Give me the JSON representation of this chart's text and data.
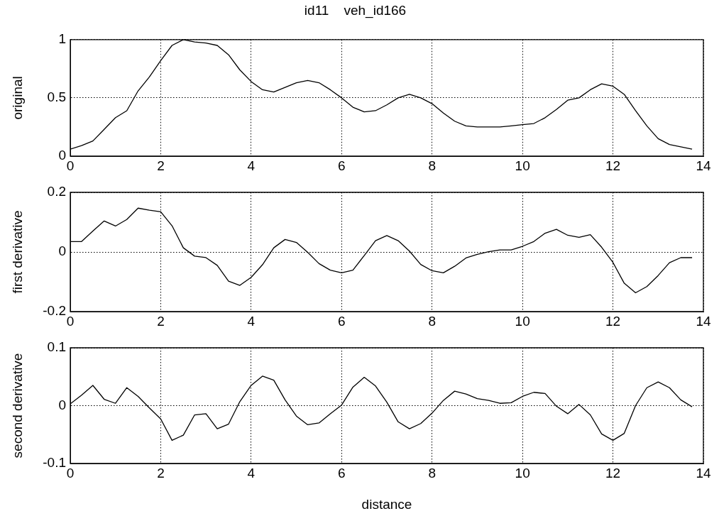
{
  "chart_data": [
    {
      "type": "line",
      "title": "id11    veh_id166",
      "ylabel": "original",
      "x": [
        0,
        0.25,
        0.5,
        0.75,
        1,
        1.25,
        1.5,
        1.75,
        2,
        2.25,
        2.5,
        2.75,
        3,
        3.25,
        3.5,
        3.75,
        4,
        4.25,
        4.5,
        4.75,
        5,
        5.25,
        5.5,
        5.75,
        6,
        6.25,
        6.5,
        6.75,
        7,
        7.25,
        7.5,
        7.75,
        8,
        8.25,
        8.5,
        8.75,
        9,
        9.25,
        9.5,
        9.75,
        10,
        10.25,
        10.5,
        10.75,
        11,
        11.25,
        11.5,
        11.75,
        12,
        12.25,
        12.5,
        12.75,
        13,
        13.25,
        13.5,
        13.75
      ],
      "series": [
        {
          "color": "#000000",
          "values": [
            0.06,
            0.09,
            0.13,
            0.23,
            0.33,
            0.39,
            0.56,
            0.68,
            0.82,
            0.95,
            1.0,
            0.98,
            0.97,
            0.95,
            0.87,
            0.74,
            0.64,
            0.57,
            0.55,
            0.59,
            0.63,
            0.65,
            0.63,
            0.57,
            0.5,
            0.42,
            0.38,
            0.39,
            0.44,
            0.5,
            0.53,
            0.5,
            0.45,
            0.37,
            0.3,
            0.26,
            0.25,
            0.25,
            0.25,
            0.26,
            0.27,
            0.28,
            0.33,
            0.4,
            0.48,
            0.5,
            0.57,
            0.62,
            0.6,
            0.53,
            0.39,
            0.26,
            0.15,
            0.1,
            0.08,
            0.06
          ]
        }
      ],
      "xlim": [
        0,
        14
      ],
      "xticks": [
        0,
        2,
        4,
        6,
        8,
        10,
        12,
        14
      ],
      "ylim": [
        0,
        1
      ],
      "yticks": [
        0,
        0.5,
        1
      ],
      "grid": true,
      "marker": "none"
    },
    {
      "type": "line",
      "ylabel": "first derivative",
      "x": [
        0,
        0.25,
        0.5,
        0.75,
        1,
        1.25,
        1.5,
        1.75,
        2,
        2.25,
        2.5,
        2.75,
        3,
        3.25,
        3.5,
        3.75,
        4,
        4.25,
        4.5,
        4.75,
        5,
        5.25,
        5.5,
        5.75,
        6,
        6.25,
        6.5,
        6.75,
        7,
        7.25,
        7.5,
        7.75,
        8,
        8.25,
        8.5,
        8.75,
        9,
        9.25,
        9.5,
        9.75,
        10,
        10.25,
        10.5,
        10.75,
        11,
        11.25,
        11.5,
        11.75,
        12,
        12.25,
        12.5,
        12.75,
        13,
        13.25,
        13.5,
        13.75
      ],
      "series": [
        {
          "color": "#000000",
          "values": [
            0.035,
            0.035,
            0.07,
            0.104,
            0.087,
            0.109,
            0.147,
            0.14,
            0.135,
            0.088,
            0.014,
            -0.014,
            -0.019,
            -0.045,
            -0.098,
            -0.112,
            -0.085,
            -0.043,
            0.014,
            0.042,
            0.032,
            -0.001,
            -0.039,
            -0.061,
            -0.07,
            -0.061,
            -0.012,
            0.038,
            0.055,
            0.038,
            0.003,
            -0.042,
            -0.063,
            -0.07,
            -0.048,
            -0.02,
            -0.008,
            0.001,
            0.007,
            0.007,
            0.019,
            0.035,
            0.063,
            0.076,
            0.056,
            0.049,
            0.058,
            0.016,
            -0.035,
            -0.105,
            -0.137,
            -0.116,
            -0.079,
            -0.036,
            -0.019,
            -0.019
          ]
        }
      ],
      "xlim": [
        0,
        14
      ],
      "xticks": [
        0,
        2,
        4,
        6,
        8,
        10,
        12,
        14
      ],
      "ylim": [
        -0.2,
        0.2
      ],
      "yticks": [
        -0.2,
        0,
        0.2
      ],
      "grid": true,
      "marker": "none"
    },
    {
      "type": "line",
      "ylabel": "second derivative",
      "xlabel": "distance",
      "x": [
        0,
        0.25,
        0.5,
        0.75,
        1,
        1.25,
        1.5,
        1.75,
        2,
        2.25,
        2.5,
        2.75,
        3,
        3.25,
        3.5,
        3.75,
        4,
        4.25,
        4.5,
        4.75,
        5,
        5.25,
        5.5,
        5.75,
        6,
        6.25,
        6.5,
        6.75,
        7,
        7.25,
        7.5,
        7.75,
        8,
        8.25,
        8.5,
        8.75,
        9,
        9.25,
        9.5,
        9.75,
        10,
        10.25,
        10.5,
        10.75,
        11,
        11.25,
        11.5,
        11.75,
        12,
        12.25,
        12.5,
        12.75,
        13,
        13.25,
        13.5,
        13.75
      ],
      "series": [
        {
          "color": "#000000",
          "values": [
            0.003,
            0.018,
            0.035,
            0.011,
            0.004,
            0.031,
            0.016,
            -0.004,
            -0.023,
            -0.06,
            -0.051,
            -0.016,
            -0.014,
            -0.04,
            -0.032,
            0.007,
            0.035,
            0.051,
            0.044,
            0.01,
            -0.018,
            -0.033,
            -0.03,
            -0.014,
            0.001,
            0.032,
            0.049,
            0.034,
            0.006,
            -0.028,
            -0.04,
            -0.031,
            -0.013,
            0.009,
            0.025,
            0.02,
            0.012,
            0.009,
            0.004,
            0.005,
            0.016,
            0.023,
            0.021,
            -0.001,
            -0.014,
            0.002,
            -0.016,
            -0.049,
            -0.06,
            -0.048,
            0.0,
            0.031,
            0.041,
            0.031,
            0.01,
            -0.002
          ]
        }
      ],
      "xlim": [
        0,
        14
      ],
      "xticks": [
        0,
        2,
        4,
        6,
        8,
        10,
        12,
        14
      ],
      "ylim": [
        -0.1,
        0.1
      ],
      "yticks": [
        -0.1,
        0,
        0.1
      ],
      "grid": true,
      "marker": "none"
    }
  ]
}
